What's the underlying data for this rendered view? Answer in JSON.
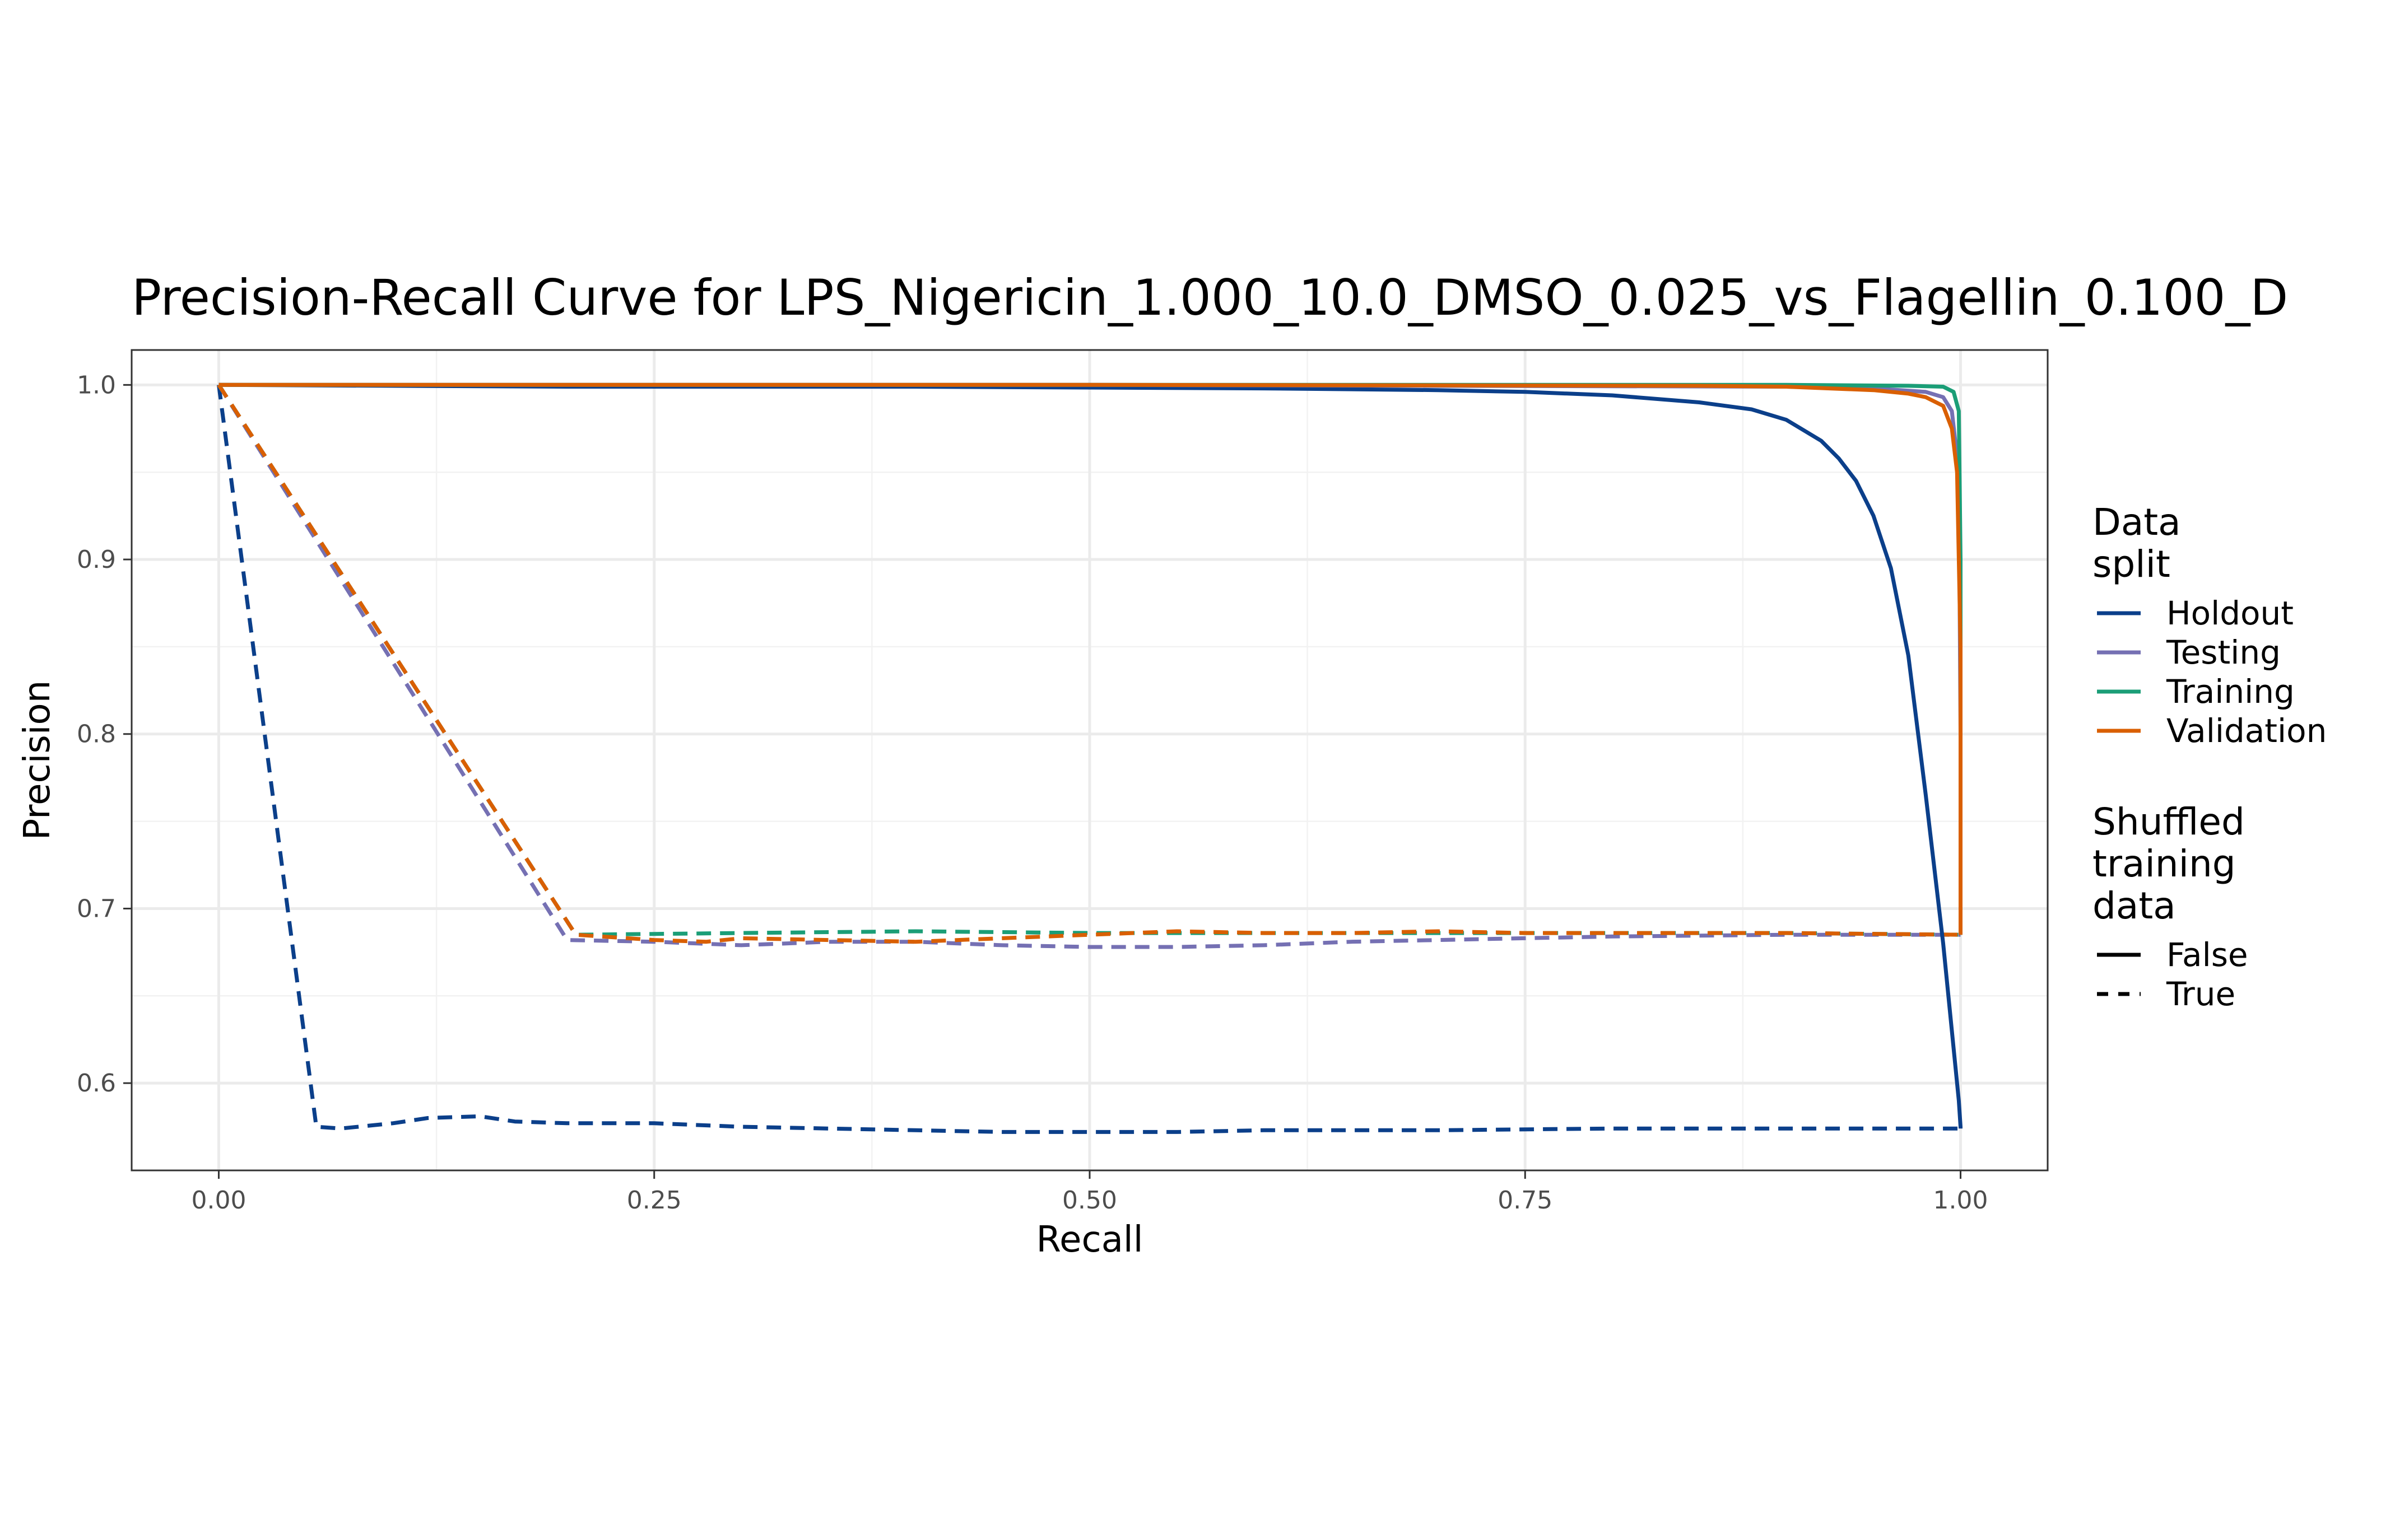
{
  "chart_data": {
    "type": "line",
    "title": "Precision-Recall Curve for LPS_Nigericin_1.000_10.0_DMSO_0.025_vs_Flagellin_0.100_D",
    "xlabel": "Recall",
    "ylabel": "Precision",
    "xlim": [
      -0.05,
      1.05
    ],
    "ylim": [
      0.55,
      1.02
    ],
    "x_ticks": [
      0.0,
      0.25,
      0.5,
      0.75,
      1.0
    ],
    "x_tick_labels": [
      "0.00",
      "0.25",
      "0.50",
      "0.75",
      "1.00"
    ],
    "y_ticks": [
      0.6,
      0.7,
      0.8,
      0.9,
      1.0
    ],
    "y_tick_labels": [
      "0.6",
      "0.7",
      "0.8",
      "0.9",
      "1.0"
    ],
    "grid": true,
    "legend_position": "right",
    "legend": {
      "color_title_lines": [
        "Data",
        "split"
      ],
      "color_entries": [
        {
          "label": "Holdout",
          "color": "#0b3f8a"
        },
        {
          "label": "Testing",
          "color": "#7570b3"
        },
        {
          "label": "Training",
          "color": "#1b9e77"
        },
        {
          "label": "Validation",
          "color": "#d95f02"
        }
      ],
      "linetype_title_lines": [
        "Shuffled",
        "training",
        "data"
      ],
      "linetype_entries": [
        {
          "label": "False",
          "dash": "solid"
        },
        {
          "label": "True",
          "dash": "dashed"
        }
      ]
    },
    "series": [
      {
        "split": "Holdout",
        "shuffled": "True",
        "color": "#0b3f8a",
        "dash": "dashed",
        "x": [
          0.0,
          0.056,
          0.07,
          0.1,
          0.12,
          0.15,
          0.17,
          0.2,
          0.25,
          0.3,
          0.35,
          0.4,
          0.45,
          0.5,
          0.55,
          0.6,
          0.7,
          0.8,
          0.9,
          1.0,
          1.0
        ],
        "y": [
          1.0,
          0.575,
          0.574,
          0.577,
          0.58,
          0.581,
          0.578,
          0.577,
          0.577,
          0.575,
          0.574,
          0.573,
          0.572,
          0.572,
          0.572,
          0.573,
          0.573,
          0.574,
          0.574,
          0.574,
          0.574
        ]
      },
      {
        "split": "Testing",
        "shuffled": "True",
        "color": "#7570b3",
        "dash": "dashed",
        "x": [
          0.0,
          0.2,
          0.25,
          0.3,
          0.35,
          0.4,
          0.45,
          0.5,
          0.55,
          0.6,
          0.65,
          0.7,
          0.75,
          0.8,
          0.9,
          1.0
        ],
        "y": [
          1.0,
          0.682,
          0.681,
          0.679,
          0.681,
          0.681,
          0.679,
          0.678,
          0.678,
          0.679,
          0.681,
          0.682,
          0.683,
          0.684,
          0.685,
          0.685
        ]
      },
      {
        "split": "Training",
        "shuffled": "True",
        "color": "#1b9e77",
        "dash": "dashed",
        "x": [
          0.0,
          0.205,
          0.3,
          0.4,
          0.5,
          0.6,
          0.7,
          0.8,
          0.9,
          1.0
        ],
        "y": [
          1.0,
          0.685,
          0.686,
          0.687,
          0.686,
          0.686,
          0.686,
          0.686,
          0.686,
          0.685
        ]
      },
      {
        "split": "Validation",
        "shuffled": "True",
        "color": "#d95f02",
        "dash": "dashed",
        "x": [
          0.0,
          0.205,
          0.25,
          0.28,
          0.3,
          0.35,
          0.4,
          0.45,
          0.5,
          0.55,
          0.6,
          0.65,
          0.7,
          0.75,
          0.8,
          0.9,
          1.0
        ],
        "y": [
          1.0,
          0.685,
          0.682,
          0.681,
          0.683,
          0.682,
          0.681,
          0.683,
          0.685,
          0.687,
          0.686,
          0.686,
          0.687,
          0.686,
          0.686,
          0.686,
          0.685
        ]
      },
      {
        "split": "Holdout",
        "shuffled": "False",
        "color": "#0b3f8a",
        "dash": "solid",
        "x": [
          0.0,
          0.2,
          0.4,
          0.6,
          0.7,
          0.75,
          0.8,
          0.85,
          0.88,
          0.9,
          0.92,
          0.93,
          0.94,
          0.95,
          0.96,
          0.97,
          0.98,
          0.99,
          0.995,
          0.999,
          1.0,
          1.0
        ],
        "y": [
          1.0,
          0.999,
          0.999,
          0.998,
          0.997,
          0.996,
          0.994,
          0.99,
          0.986,
          0.98,
          0.968,
          0.958,
          0.945,
          0.925,
          0.895,
          0.845,
          0.765,
          0.68,
          0.63,
          0.59,
          0.575,
          0.574
        ]
      },
      {
        "split": "Testing",
        "shuffled": "False",
        "color": "#7570b3",
        "dash": "solid",
        "x": [
          0.0,
          0.5,
          0.9,
          0.95,
          0.98,
          0.99,
          0.995,
          0.999,
          1.0,
          1.0
        ],
        "y": [
          1.0,
          1.0,
          0.999,
          0.998,
          0.996,
          0.993,
          0.985,
          0.95,
          0.8,
          0.685
        ]
      },
      {
        "split": "Training",
        "shuffled": "False",
        "color": "#1b9e77",
        "dash": "solid",
        "x": [
          0.0,
          0.5,
          0.9,
          0.97,
          0.99,
          0.996,
          0.999,
          1.0,
          1.0
        ],
        "y": [
          1.0,
          1.0,
          1.0,
          0.9995,
          0.999,
          0.996,
          0.985,
          0.9,
          0.685
        ]
      },
      {
        "split": "Validation",
        "shuffled": "False",
        "color": "#d95f02",
        "dash": "solid",
        "x": [
          0.0,
          0.5,
          0.85,
          0.9,
          0.95,
          0.97,
          0.98,
          0.99,
          0.995,
          0.998,
          1.0,
          1.0
        ],
        "y": [
          1.0,
          1.0,
          0.9995,
          0.999,
          0.997,
          0.995,
          0.993,
          0.988,
          0.975,
          0.95,
          0.85,
          0.685
        ]
      }
    ]
  }
}
